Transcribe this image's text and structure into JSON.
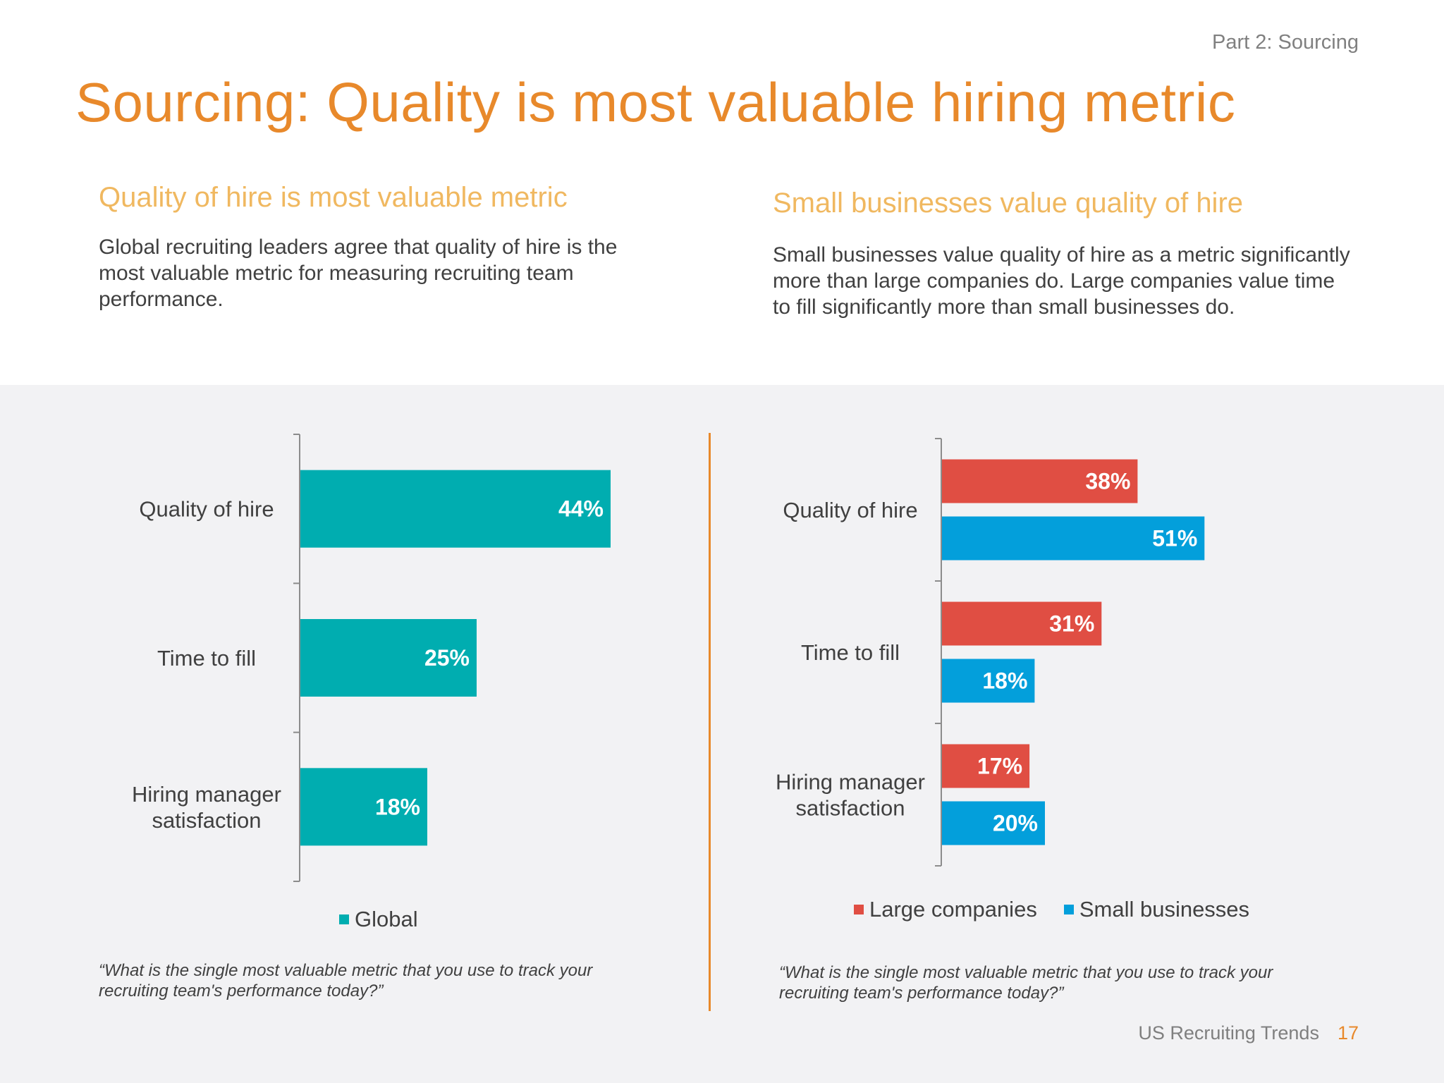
{
  "header": {
    "part_label": "Part 2: Sourcing",
    "title": "Sourcing: Quality is most valuable hiring metric"
  },
  "left_column": {
    "heading": "Quality of hire is most valuable metric",
    "body": "Global recruiting leaders agree that quality of hire is the most valuable metric for measuring recruiting team performance."
  },
  "right_column": {
    "heading": "Small businesses value quality of hire",
    "body": "Small businesses value quality of hire as a metric significantly more than large companies do. Large companies value time to fill significantly more than small businesses do."
  },
  "colors": {
    "accent_orange": "#e8892b",
    "heading_light_orange": "#f0b860",
    "global_teal": "#00adb0",
    "large_red": "#e04e43",
    "small_blue": "#039fdb"
  },
  "chart_data": [
    {
      "type": "bar",
      "orientation": "horizontal",
      "categories": [
        "Quality of hire",
        "Time to fill",
        "Hiring manager satisfaction"
      ],
      "series": [
        {
          "name": "Global",
          "values": [
            44,
            25,
            18
          ],
          "value_labels": [
            "44%",
            "25%",
            "18%"
          ],
          "color": "#00adb0"
        }
      ],
      "xlim": [
        0,
        100
      ],
      "grid": false,
      "legend_position": "bottom",
      "question": "“What is the single most valuable metric that you use to track your recruiting team's performance today?”"
    },
    {
      "type": "bar",
      "orientation": "horizontal",
      "categories": [
        "Quality of hire",
        "Time to fill",
        "Hiring manager satisfaction"
      ],
      "series": [
        {
          "name": "Large companies",
          "values": [
            38,
            31,
            17
          ],
          "value_labels": [
            "38%",
            "31%",
            "17%"
          ],
          "color": "#e04e43"
        },
        {
          "name": "Small businesses",
          "values": [
            51,
            18,
            20
          ],
          "value_labels": [
            "51%",
            "18%",
            "20%"
          ],
          "color": "#039fdb"
        }
      ],
      "xlim": [
        0,
        100
      ],
      "grid": false,
      "legend_position": "bottom",
      "question": "“What is the single most valuable metric that you use to track your recruiting team's performance today?”"
    }
  ],
  "footer": {
    "report_name": "US Recruiting Trends",
    "page_number": "17"
  }
}
